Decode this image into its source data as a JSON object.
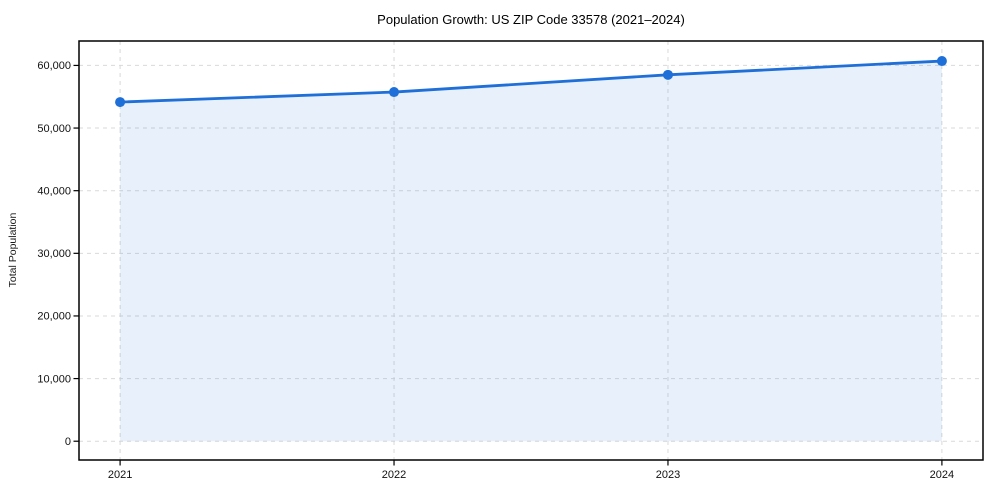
{
  "figure": {
    "background": "#ffffff"
  },
  "chart_data": {
    "type": "area",
    "title": "Population Growth: US ZIP Code 33578 (2021–2024)",
    "xlabel": "",
    "ylabel": "Total Population",
    "x": [
      2021,
      2022,
      2023,
      2024
    ],
    "x_tick_labels": [
      "2021",
      "2022",
      "2023",
      "2024"
    ],
    "series": [
      {
        "name": "Total Population",
        "values": [
          54150,
          55750,
          58500,
          60700
        ]
      }
    ],
    "y_ticks": [
      0,
      10000,
      20000,
      30000,
      40000,
      50000,
      60000
    ],
    "y_tick_labels": [
      "0",
      "10,000",
      "20,000",
      "30,000",
      "40,000",
      "50,000",
      "60,000"
    ],
    "xlim": [
      2020.85,
      2024.15
    ],
    "ylim": [
      -3000,
      63900
    ],
    "grid": true,
    "grid_style": "dashed",
    "legend": "none",
    "marker": "circle",
    "colors": {
      "line": "#1f6fd8",
      "marker": "#1f6fd8",
      "fill": "rgba(31,111,216,0.10)",
      "grid": "#d9d9d9",
      "spine": "#000000",
      "tick": "#000000",
      "text": "#111111",
      "background": "#ffffff"
    }
  }
}
